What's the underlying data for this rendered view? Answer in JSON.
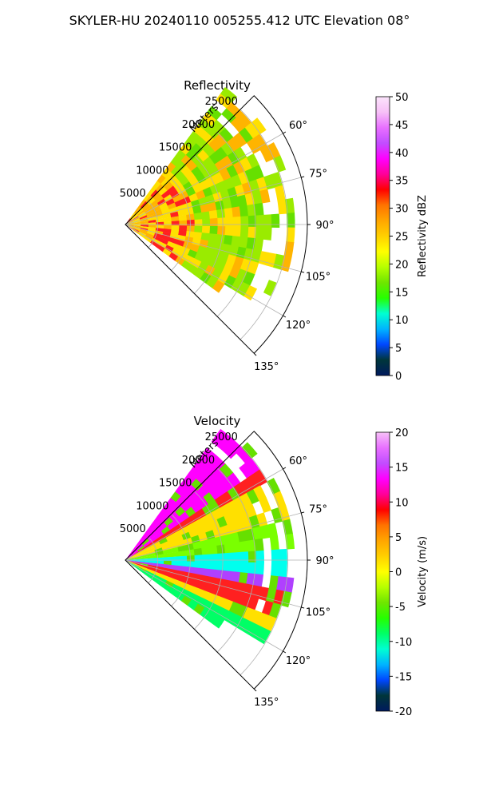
{
  "figure": {
    "title": "SKYLER-HU  20240110  005255.412 UTC Elevation 08°"
  },
  "chart_data": [
    {
      "type": "heatmap",
      "projection": "polar-sector",
      "title": "Reflectivity",
      "range_label": "Meters",
      "range_ticks": [
        5000,
        10000,
        15000,
        20000,
        25000
      ],
      "range_max": 28000,
      "azimuth_ticks": [
        "60°",
        "75°",
        "90°",
        "105°",
        "120°",
        "135°"
      ],
      "azimuth_tick_values": [
        60,
        75,
        90,
        105,
        120,
        135
      ],
      "azimuth_range": [
        45,
        135
      ],
      "grid": true,
      "colorbar": {
        "label": "Reflectivity dBZ",
        "min": 0,
        "max": 50,
        "ticks": [
          0,
          5,
          10,
          15,
          20,
          25,
          30,
          35,
          40,
          45,
          50
        ],
        "stops": [
          "#001a5e",
          "#00363a",
          "#0047ff",
          "#00b4ff",
          "#00ffd2",
          "#26ff00",
          "#6ee600",
          "#b6ff00",
          "#ffff00",
          "#ffd000",
          "#ffa600",
          "#ff7300",
          "#ff0000",
          "#ff0099",
          "#ff00ff",
          "#c24dff",
          "#e870ff",
          "#f7c0f7",
          "#fbe4fb"
        ]
      },
      "fill_colors": [
        "#ffe000",
        "#ffb400",
        "#ff2020",
        "#9aeb00",
        "#66e000"
      ]
    },
    {
      "type": "heatmap",
      "projection": "polar-sector",
      "title": "Velocity",
      "range_label": "Meters",
      "range_ticks": [
        5000,
        10000,
        15000,
        20000,
        25000
      ],
      "range_max": 28000,
      "azimuth_ticks": [
        "60°",
        "75°",
        "90°",
        "105°",
        "120°",
        "135°"
      ],
      "azimuth_tick_values": [
        60,
        75,
        90,
        105,
        120,
        135
      ],
      "azimuth_range": [
        45,
        135
      ],
      "grid": true,
      "colorbar": {
        "label": "Velocity (m/s)",
        "min": -20,
        "max": 20,
        "ticks": [
          -20,
          -15,
          -10,
          -5,
          0,
          5,
          10,
          15,
          20
        ],
        "stops": [
          "#001a5e",
          "#00363a",
          "#0047ff",
          "#00b4ff",
          "#00ffd2",
          "#00ff66",
          "#26ff00",
          "#6ee600",
          "#b6ff00",
          "#ffff00",
          "#ffd000",
          "#ffa600",
          "#ff7300",
          "#ff0000",
          "#ff0099",
          "#ff00ff",
          "#c24dff",
          "#e870ff",
          "#f7c0f7"
        ]
      },
      "fill_colors": [
        "#ff00ff",
        "#ff2020",
        "#ffe000",
        "#7aff00",
        "#00ffee",
        "#b040ff",
        "#66e000",
        "#00ff66"
      ]
    }
  ]
}
